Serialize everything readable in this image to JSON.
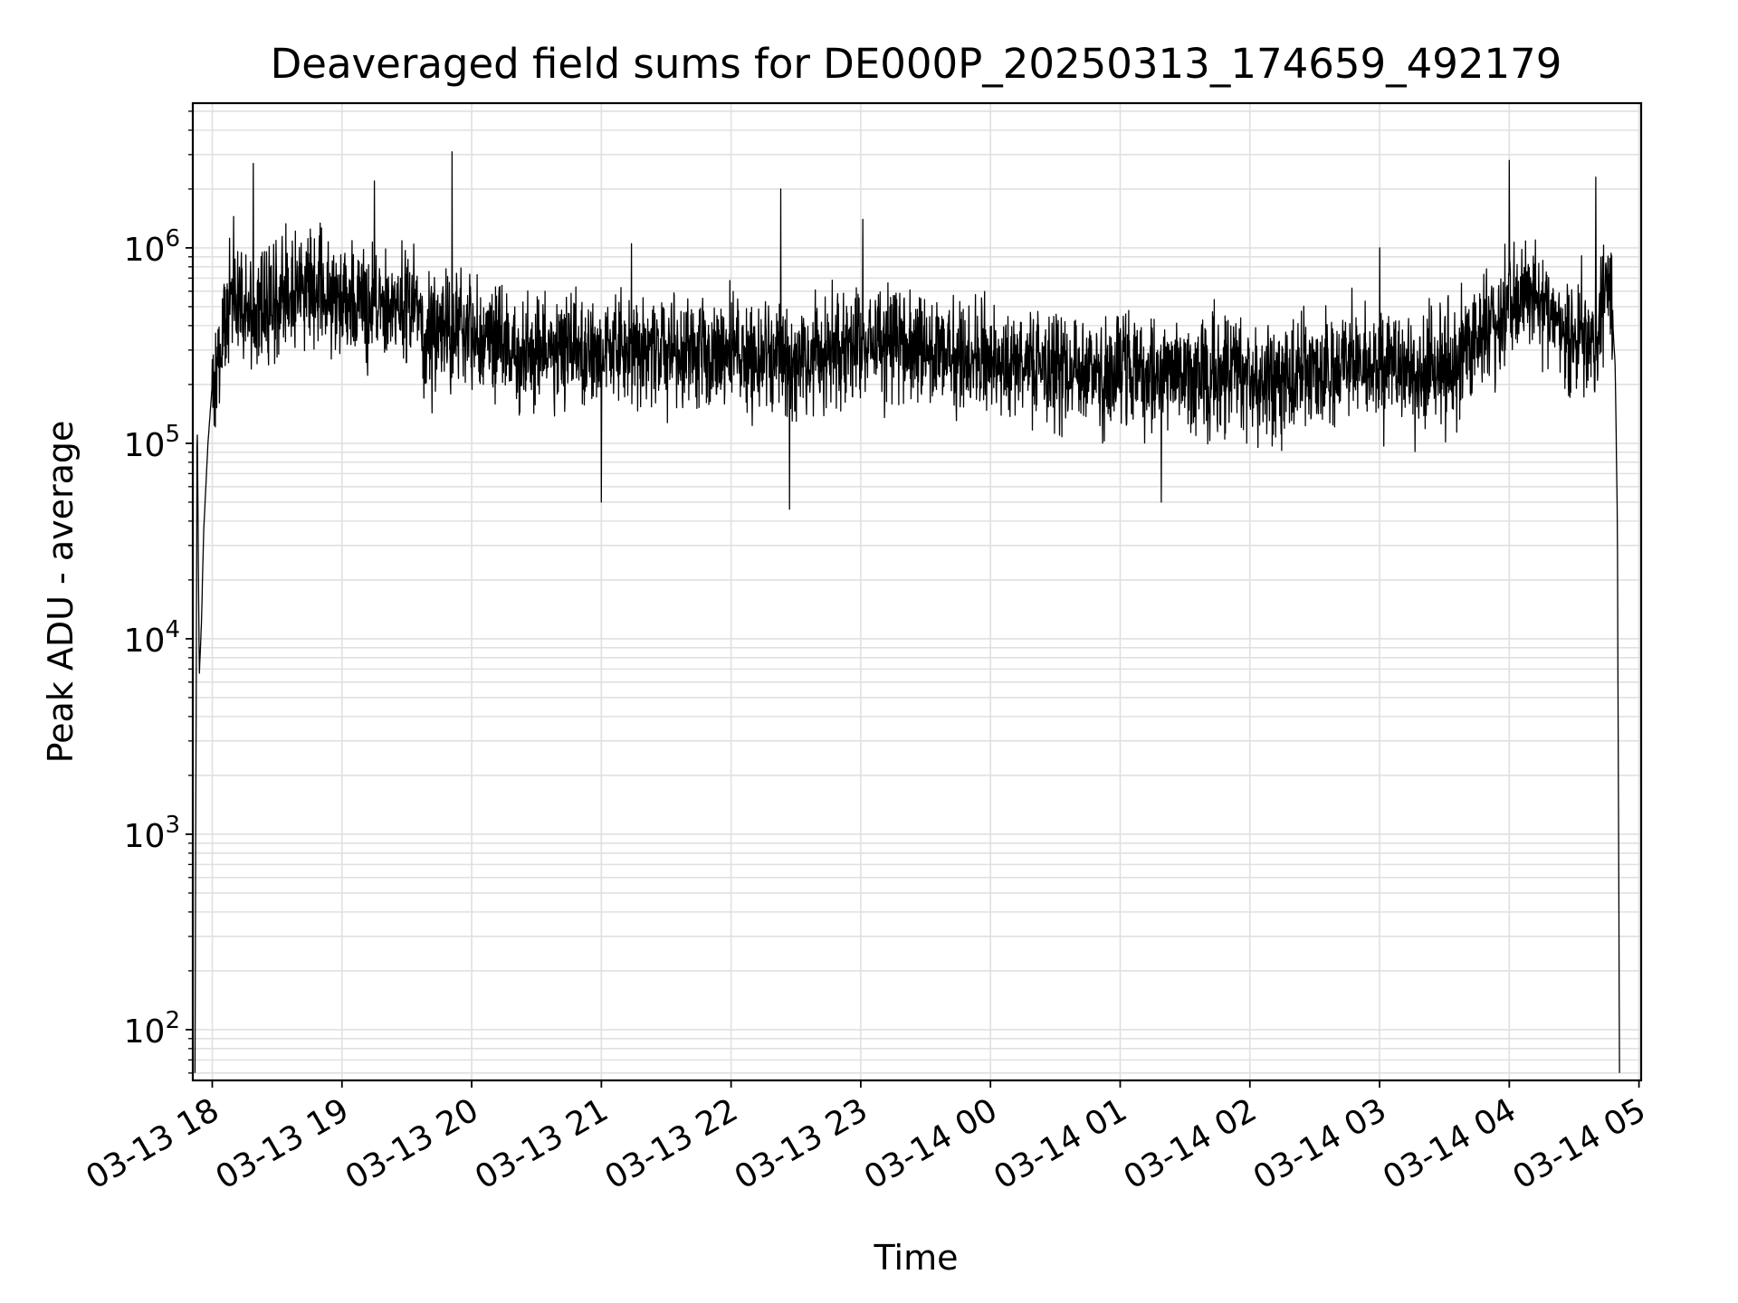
{
  "chart_data": {
    "type": "line",
    "title": "Deaveraged field sums for DE000P_20250313_174659_492179",
    "xlabel": "Time",
    "ylabel": "Peak ADU - average",
    "y_scale": "log",
    "ylim": [
      55,
      5500000
    ],
    "xlim": [
      "2025-03-13 17:51",
      "2025-03-14 05:01"
    ],
    "x_tick_labels": [
      "03-13 18",
      "03-13 19",
      "03-13 20",
      "03-13 21",
      "03-13 22",
      "03-13 23",
      "03-14 00",
      "03-14 01",
      "03-14 02",
      "03-14 03",
      "03-14 04",
      "03-14 05"
    ],
    "x_tick_values": [
      "2025-03-13 18:00",
      "2025-03-13 19:00",
      "2025-03-13 20:00",
      "2025-03-13 21:00",
      "2025-03-13 22:00",
      "2025-03-13 23:00",
      "2025-03-14 00:00",
      "2025-03-14 01:00",
      "2025-03-14 02:00",
      "2025-03-14 03:00",
      "2025-03-14 04:00",
      "2025-03-14 05:00"
    ],
    "y_ticks": [
      {
        "base": "10",
        "exp": "2",
        "value": 100
      },
      {
        "base": "10",
        "exp": "3",
        "value": 1000
      },
      {
        "base": "10",
        "exp": "4",
        "value": 10000
      },
      {
        "base": "10",
        "exp": "5",
        "value": 100000
      },
      {
        "base": "10",
        "exp": "6",
        "value": 1000000
      }
    ],
    "grid": true,
    "line_color": "#000000",
    "grid_color": "#e0e0e0",
    "series": [
      {
        "x": [
          "2025-03-13 17:52",
          "2025-03-13 17:53",
          "2025-03-13 17:54",
          "2025-03-13 17:55",
          "2025-03-13 17:56",
          "2025-03-13 17:58",
          "2025-03-13 18:00",
          "2025-03-13 18:03",
          "2025-03-13 18:06",
          "2025-03-13 18:10",
          "2025-03-13 18:15",
          "2025-03-13 18:20",
          "2025-03-13 18:25",
          "2025-03-13 18:30",
          "2025-03-13 18:40",
          "2025-03-13 18:50",
          "2025-03-13 19:00",
          "2025-03-13 19:15",
          "2025-03-13 19:30",
          "2025-03-13 19:40",
          "2025-03-13 19:50",
          "2025-03-13 20:00",
          "2025-03-13 20:30",
          "2025-03-13 21:00",
          "2025-03-13 21:30",
          "2025-03-13 22:00",
          "2025-03-13 22:30",
          "2025-03-13 23:00",
          "2025-03-13 23:30",
          "2025-03-14 00:00",
          "2025-03-14 00:30",
          "2025-03-14 01:00",
          "2025-03-14 01:30",
          "2025-03-14 02:00",
          "2025-03-14 02:30",
          "2025-03-14 03:00",
          "2025-03-14 03:30",
          "2025-03-14 04:00",
          "2025-03-14 04:15",
          "2025-03-14 04:30",
          "2025-03-14 04:40",
          "2025-03-14 04:45",
          "2025-03-14 04:47",
          "2025-03-14 04:49",
          "2025-03-14 04:50",
          "2025-03-14 04:51"
        ],
        "y": [
          60,
          150000,
          6500,
          12000,
          35000,
          100000,
          200000,
          280000,
          400000,
          550000,
          500000,
          450000,
          500000,
          550000,
          600000,
          650000,
          550000,
          500000,
          550000,
          350000,
          400000,
          350000,
          300000,
          300000,
          300000,
          280000,
          260000,
          330000,
          280000,
          260000,
          250000,
          230000,
          220000,
          220000,
          230000,
          240000,
          240000,
          500000,
          550000,
          350000,
          300000,
          700000,
          600000,
          250000,
          40000,
          60
        ],
        "spikes": [
          {
            "x": "2025-03-13 18:19",
            "y": 2700000
          },
          {
            "x": "2025-03-13 19:15",
            "y": 2200000
          },
          {
            "x": "2025-03-13 19:51",
            "y": 3100000
          },
          {
            "x": "2025-03-13 21:00",
            "y": 50000
          },
          {
            "x": "2025-03-13 21:14",
            "y": 1050000
          },
          {
            "x": "2025-03-13 22:23",
            "y": 2000000
          },
          {
            "x": "2025-03-13 22:27",
            "y": 46000
          },
          {
            "x": "2025-03-13 23:01",
            "y": 1400000
          },
          {
            "x": "2025-03-14 01:19",
            "y": 50000
          },
          {
            "x": "2025-03-14 03:00",
            "y": 1000000
          },
          {
            "x": "2025-03-14 04:00",
            "y": 2800000
          },
          {
            "x": "2025-03-14 04:40",
            "y": 2300000
          }
        ]
      }
    ]
  }
}
